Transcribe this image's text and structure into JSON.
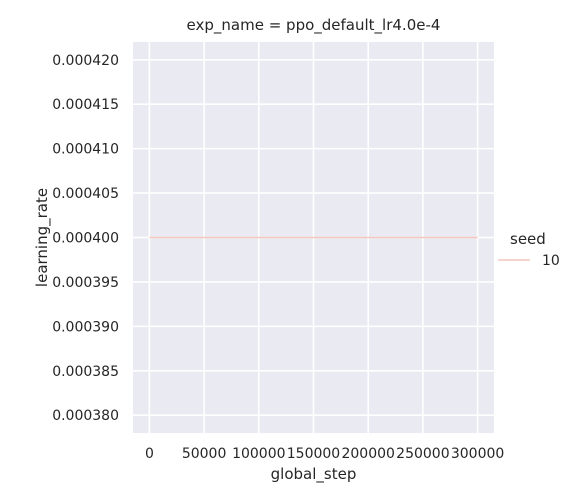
{
  "chart_data": {
    "type": "line",
    "title": "exp_name = ppo_default_lr4.0e-4",
    "xlabel": "global_step",
    "ylabel": "learning_rate",
    "xlim": [
      -15000,
      315000
    ],
    "ylim": [
      0.000378,
      0.000422
    ],
    "xticks": [
      0,
      50000,
      100000,
      150000,
      200000,
      250000,
      300000
    ],
    "xtick_labels": [
      "0",
      "50000",
      "100000",
      "150000",
      "200000",
      "250000",
      "300000"
    ],
    "yticks": [
      0.00038,
      0.000385,
      0.00039,
      0.000395,
      0.0004,
      0.000405,
      0.00041,
      0.000415,
      0.00042
    ],
    "ytick_labels": [
      "0.000380",
      "0.000385",
      "0.000390",
      "0.000395",
      "0.000400",
      "0.000405",
      "0.000410",
      "0.000415",
      "0.000420"
    ],
    "grid": true,
    "legend_position": "right",
    "legend_title": "seed",
    "series": [
      {
        "name": "10",
        "color": "#f4c6bd",
        "x": [
          0,
          300000
        ],
        "y": [
          0.0004,
          0.0004
        ]
      }
    ],
    "background_color": "#eaeaf2",
    "grid_color": "#ffffff"
  }
}
